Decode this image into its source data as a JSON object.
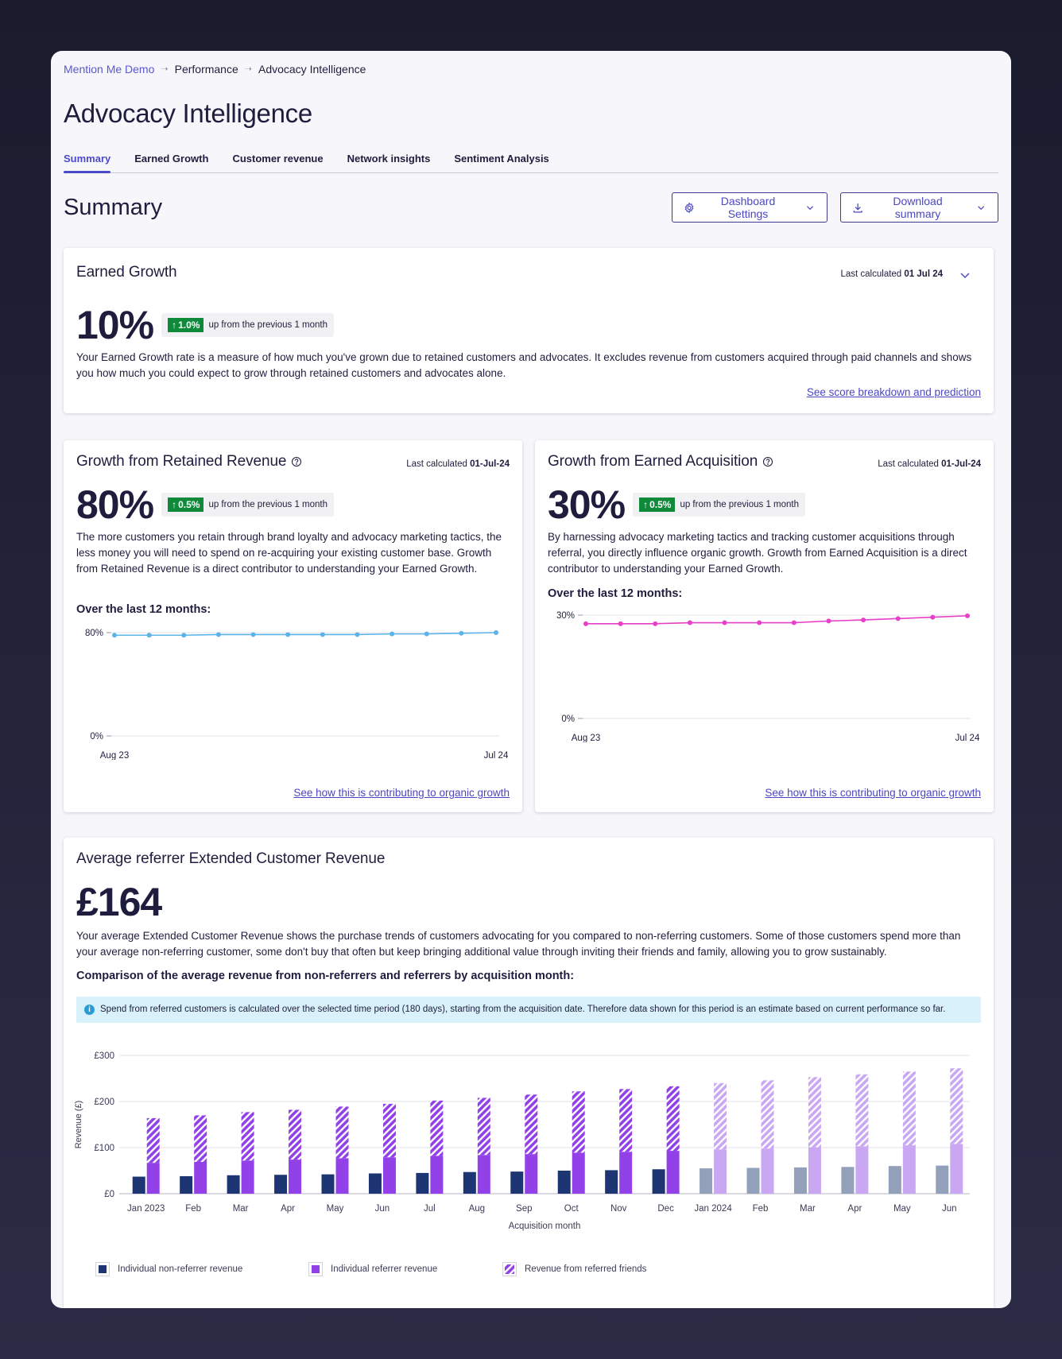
{
  "breadcrumb": {
    "root": "Mention Me Demo",
    "level1": "Performance",
    "current": "Advocacy Intelligence"
  },
  "page_title": "Advocacy Intelligence",
  "tabs": [
    "Summary",
    "Earned Growth",
    "Customer revenue",
    "Network insights",
    "Sentiment Analysis"
  ],
  "summary": {
    "title": "Summary",
    "settings_button": "Dashboard Settings",
    "download_button": "Download summary"
  },
  "earned_growth": {
    "title": "Earned Growth",
    "last_calc_label": "Last calculated",
    "last_calc_date": "01 Jul 24",
    "value": "10%",
    "delta": "1.0%",
    "delta_text": "up from the previous 1 month",
    "description": "Your Earned Growth rate is a measure of how much you've grown due to retained customers and advocates. It excludes revenue from customers acquired through paid channels and shows you how much you could expect to grow through retained customers and advocates alone.",
    "link": "See score breakdown and prediction"
  },
  "retained": {
    "title": "Growth from Retained Revenue",
    "last_calc_label": "Last calculated",
    "last_calc_date": "01-Jul-24",
    "value": "80%",
    "delta": "0.5%",
    "delta_text": "up from the previous 1 month",
    "description": "The more customers you retain through brand loyalty and advocacy marketing tactics, the less money you will need to spend on re-acquiring your existing customer base. Growth from Retained Revenue is a direct contributor to understanding your Earned Growth.",
    "subtitle": "Over the last 12 months:",
    "link": "See how this is contributing to organic growth"
  },
  "acquisition": {
    "title": "Growth from Earned Acquisition",
    "last_calc_label": "Last calculated",
    "last_calc_date": "01-Jul-24",
    "value": "30%",
    "delta": "0.5%",
    "delta_text": "up from the previous 1 month",
    "description": "By harnessing advocacy marketing tactics and tracking customer acquisitions through referral, you directly influence organic growth. Growth from Earned Acquisition is a direct contributor to understanding your Earned Growth.",
    "subtitle": "Over the last 12 months:",
    "link": "See how this is contributing to organic growth"
  },
  "ecr": {
    "title": "Average referrer Extended Customer Revenue",
    "value": "£164",
    "description": "Your average Extended Customer Revenue shows the purchase trends of customers advocating for you compared to non-referring customers. Some of those customers spend more than your average non-referring customer, some don't buy that often but keep bringing additional value through inviting their friends and family, allowing you to grow sustainably.",
    "subtitle": "Comparison of the average revenue from non-referrers and referrers by acquisition month:",
    "info": "Spend from referred customers is calculated over the selected time period (180 days), starting from the acquisition date. Therefore data shown for this period is an estimate based on current performance so far."
  },
  "chart_data": [
    {
      "type": "line",
      "x_labels": [
        "Aug 23",
        "Jul 24"
      ],
      "y_ticks": [
        "0%",
        "80%"
      ],
      "ylim": [
        0,
        80
      ],
      "color": "#5ab4ea",
      "series": [
        {
          "values": [
            78,
            78,
            78,
            78.5,
            78.5,
            78.5,
            78.5,
            78.5,
            79,
            79,
            79.5,
            80
          ]
        }
      ]
    },
    {
      "type": "line",
      "x_labels": [
        "Aug 23",
        "Jul 24"
      ],
      "y_ticks": [
        "0%",
        "30%"
      ],
      "ylim": [
        0,
        30
      ],
      "color": "#e83fc8",
      "series": [
        {
          "values": [
            27.5,
            27.5,
            27.5,
            27.8,
            27.8,
            27.8,
            27.8,
            28.3,
            28.6,
            29,
            29.4,
            29.8
          ]
        }
      ]
    },
    {
      "type": "bar",
      "categories": [
        "Jan 2023",
        "Feb",
        "Mar",
        "Apr",
        "May",
        "Jun",
        "Jul",
        "Aug",
        "Sep",
        "Oct",
        "Nov",
        "Dec",
        "Jan 2024",
        "Feb",
        "Mar",
        "Apr",
        "May",
        "Jun"
      ],
      "estimated_from_index": 12,
      "xlabel": "Acquisition month",
      "ylabel": "Revenue (£)",
      "y_ticks": [
        "£0",
        "£100",
        "£200",
        "£300"
      ],
      "ylim": [
        0,
        300
      ],
      "series": [
        {
          "name": "Individual non-referrer revenue",
          "color": "#1e3574",
          "estimate_color": "#93a0b9",
          "values": [
            37,
            38,
            40,
            41,
            42,
            44,
            45,
            47,
            48,
            50,
            51,
            53,
            55,
            56,
            57,
            58,
            60,
            61
          ]
        },
        {
          "name": "Individual referrer revenue",
          "color": "#9240e8",
          "estimate_color": "#c9a7f2",
          "values": [
            67,
            69,
            72,
            74,
            77,
            79,
            82,
            84,
            86,
            89,
            91,
            93,
            96,
            98,
            101,
            103,
            105,
            108
          ]
        },
        {
          "name": "Revenue from referred friends",
          "color": "#9240e8",
          "estimate_color": "#c9a7f2",
          "values": [
            97,
            101,
            105,
            108,
            112,
            116,
            120,
            124,
            129,
            133,
            136,
            140,
            144,
            148,
            152,
            156,
            160,
            164
          ]
        }
      ]
    }
  ]
}
